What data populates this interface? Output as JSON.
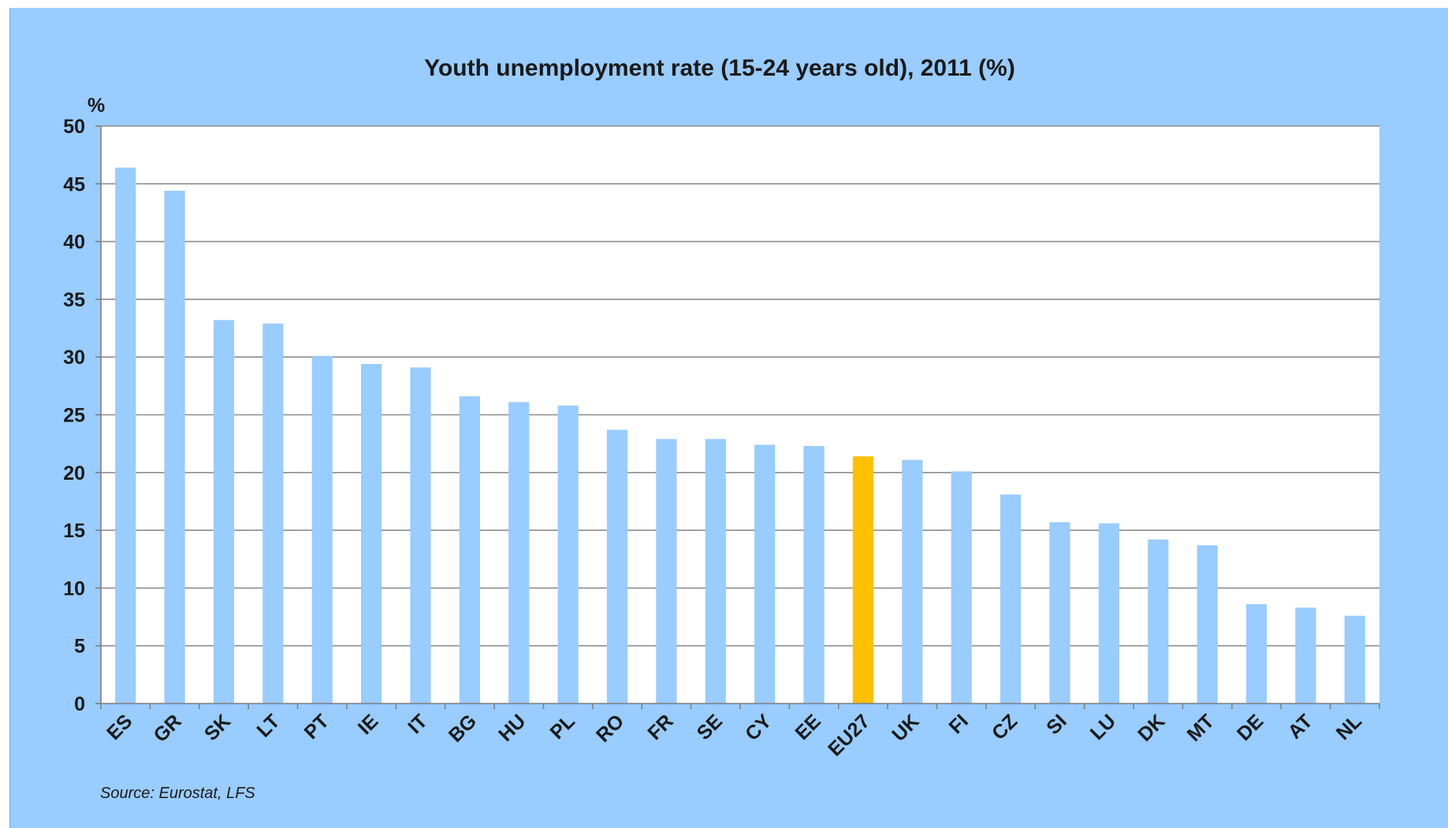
{
  "chart_data": {
    "type": "bar",
    "title": "Youth unemployment  rate (15-24 years old), 2011 (%)",
    "ylabel": "%",
    "xlabel": "",
    "ylim": [
      0,
      50
    ],
    "yticks": [
      0,
      5,
      10,
      15,
      20,
      25,
      30,
      35,
      40,
      45,
      50
    ],
    "grid": true,
    "categories": [
      "ES",
      "GR",
      "SK",
      "LT",
      "PT",
      "IE",
      "IT",
      "BG",
      "HU",
      "PL",
      "RO",
      "FR",
      "SE",
      "CY",
      "EE",
      "EU27",
      "UK",
      "FI",
      "CZ",
      "SI",
      "LU",
      "DK",
      "MT",
      "DE",
      "AT",
      "NL"
    ],
    "values": [
      46.4,
      44.4,
      33.2,
      32.9,
      30.1,
      29.4,
      29.1,
      26.6,
      26.1,
      25.8,
      23.7,
      22.9,
      22.9,
      22.4,
      22.3,
      21.4,
      21.1,
      20.1,
      18.1,
      15.7,
      15.6,
      14.2,
      13.7,
      8.6,
      8.3,
      7.6
    ],
    "highlight": "EU27",
    "colors": {
      "bar": "#99ccff",
      "highlight": "#ffc000",
      "background": "#99ccff",
      "plot": "#ffffff",
      "grid": "#8c8c8c",
      "axis": "#7f7f7f"
    },
    "source": "Source: Eurostat, LFS"
  }
}
